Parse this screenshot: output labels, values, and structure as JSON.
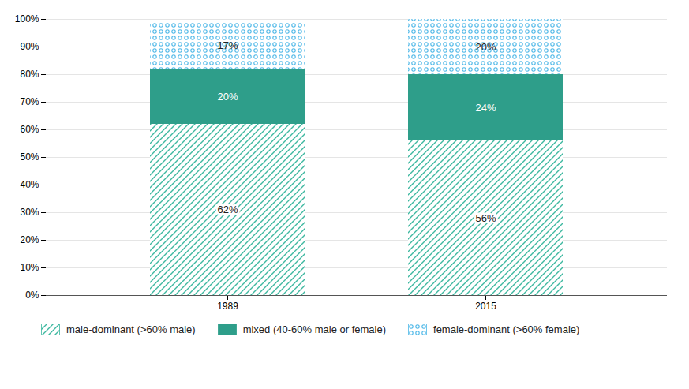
{
  "chart_data": {
    "type": "bar",
    "stacked": true,
    "categories": [
      "1989",
      "2015"
    ],
    "series": [
      {
        "name": "male-dominant (>60% male)",
        "color": "#3db8a0",
        "values": [
          62,
          56
        ],
        "value_labels": [
          "62%",
          "56%"
        ]
      },
      {
        "name": "mixed (40-60% male or female)",
        "color": "#2e9e8a",
        "values": [
          20,
          24
        ],
        "value_labels": [
          "20%",
          "24%"
        ]
      },
      {
        "name": "female-dominant (>60% female)",
        "color": "#4db8e8",
        "values": [
          17,
          20
        ],
        "value_labels": [
          "17%",
          "20%"
        ]
      }
    ],
    "ylim": [
      0,
      100
    ],
    "yticks": [
      {
        "value": 0,
        "label": "0%"
      },
      {
        "value": 10,
        "label": "10%"
      },
      {
        "value": 20,
        "label": "20%"
      },
      {
        "value": 30,
        "label": "30%"
      },
      {
        "value": 40,
        "label": "40%"
      },
      {
        "value": 50,
        "label": "50%"
      },
      {
        "value": 60,
        "label": "60%"
      },
      {
        "value": 70,
        "label": "70%"
      },
      {
        "value": 80,
        "label": "80%"
      },
      {
        "value": 90,
        "label": "90%"
      },
      {
        "value": 100,
        "label": "100%"
      }
    ],
    "grid": true,
    "data_labels": true,
    "legend": "lower left"
  }
}
